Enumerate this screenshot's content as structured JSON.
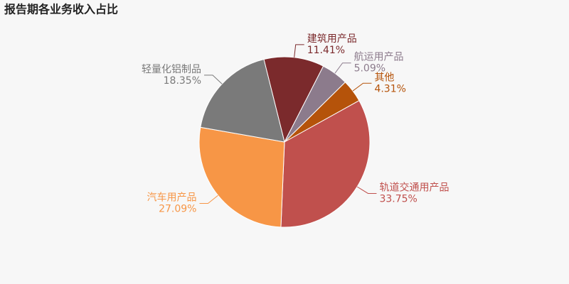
{
  "chart_data": {
    "type": "pie",
    "title": "报告期各业务收入占比",
    "categories": [
      "建筑用产品",
      "航运用产品",
      "其他",
      "轨道交通用产品",
      "汽车用产品",
      "轻量化铝制品"
    ],
    "values": [
      11.41,
      5.09,
      4.31,
      33.75,
      27.09,
      18.35
    ],
    "value_labels": [
      "11.41%",
      "5.09%",
      "4.31%",
      "33.75%",
      "27.09%",
      "18.35%"
    ],
    "colors": [
      "#7b2a2c",
      "#8c7b8c",
      "#b5530a",
      "#c0504d",
      "#f79646",
      "#7a7a7a"
    ]
  }
}
